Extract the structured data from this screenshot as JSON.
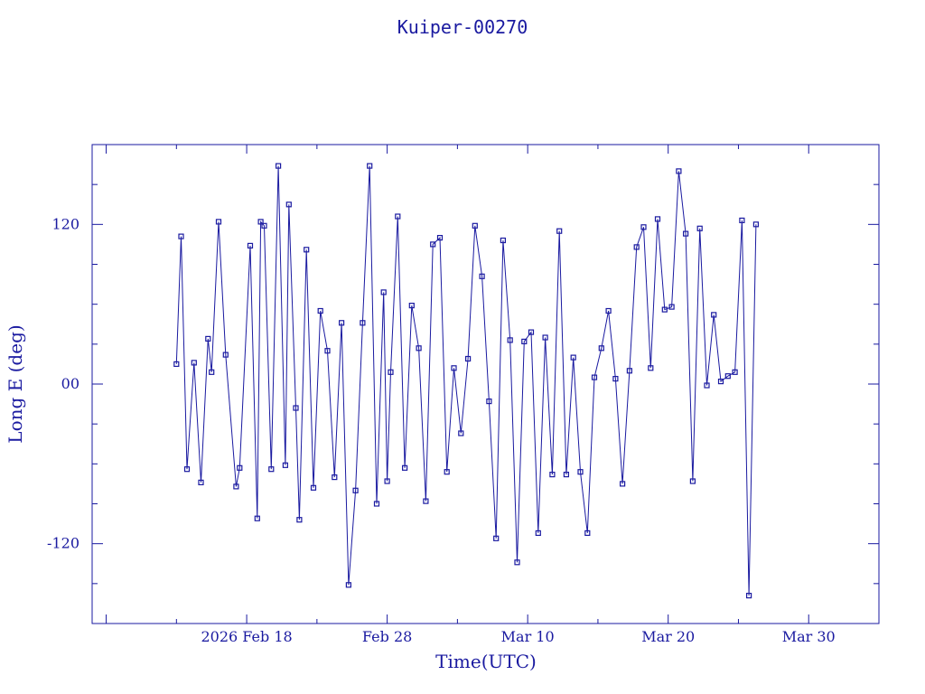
{
  "chart_data": {
    "type": "line",
    "title": "Kuiper-00270",
    "xlabel": "Time(UTC)",
    "ylabel": "Long E (deg)",
    "x_ticks": [
      {
        "date": "2026-02-18",
        "label": "2026 Feb 18"
      },
      {
        "date": "2026-02-28",
        "label": "Feb 28"
      },
      {
        "date": "2026-03-10",
        "label": "Mar 10"
      },
      {
        "date": "2026-03-20",
        "label": "Mar 20"
      },
      {
        "date": "2026-03-30",
        "label": "Mar 30"
      }
    ],
    "y_ticks": [
      {
        "value": 120,
        "label": "120"
      },
      {
        "value": 0,
        "label": "00"
      },
      {
        "value": -120,
        "label": "-120"
      }
    ],
    "xlim": [
      "2026-02-07",
      "2026-04-04"
    ],
    "ylim": [
      -180,
      180
    ],
    "grid": false,
    "series": [
      {
        "marker": "square",
        "color": "#1a1aa0",
        "points": [
          [
            "2026-02-13",
            15
          ],
          [
            "2026-02-13T08:00",
            111
          ],
          [
            "2026-02-13T18:00",
            -64
          ],
          [
            "2026-02-14T06:00",
            16
          ],
          [
            "2026-02-14T18:00",
            -74
          ],
          [
            "2026-02-15T06:00",
            34
          ],
          [
            "2026-02-15T12:00",
            9
          ],
          [
            "2026-02-16",
            122
          ],
          [
            "2026-02-16T12:00",
            22
          ],
          [
            "2026-02-17T06:00",
            -77
          ],
          [
            "2026-02-17T12:00",
            -63
          ],
          [
            "2026-02-18T06:00",
            104
          ],
          [
            "2026-02-18T18:00",
            -101
          ],
          [
            "2026-02-19",
            122
          ],
          [
            "2026-02-19T06:00",
            119
          ],
          [
            "2026-02-19T18:00",
            -64
          ],
          [
            "2026-02-20T06:00",
            164
          ],
          [
            "2026-02-20T18:00",
            -61
          ],
          [
            "2026-02-21",
            135
          ],
          [
            "2026-02-21T12:00",
            -18
          ],
          [
            "2026-02-21T18:00",
            -102
          ],
          [
            "2026-02-22T06:00",
            101
          ],
          [
            "2026-02-22T18:00",
            -78
          ],
          [
            "2026-02-23T06:00",
            55
          ],
          [
            "2026-02-23T18:00",
            25
          ],
          [
            "2026-02-24T06:00",
            -70
          ],
          [
            "2026-02-24T18:00",
            46
          ],
          [
            "2026-02-25T06:00",
            -151
          ],
          [
            "2026-02-25T18:00",
            -80
          ],
          [
            "2026-02-26T06:00",
            46
          ],
          [
            "2026-02-26T18:00",
            164
          ],
          [
            "2026-02-27T06:00",
            -90
          ],
          [
            "2026-02-27T18:00",
            69
          ],
          [
            "2026-02-28",
            -73
          ],
          [
            "2026-02-28T06:00",
            9
          ],
          [
            "2026-02-28T18:00",
            126
          ],
          [
            "2026-03-01T06:00",
            -63
          ],
          [
            "2026-03-01T18:00",
            59
          ],
          [
            "2026-03-02T06:00",
            27
          ],
          [
            "2026-03-02T18:00",
            -88
          ],
          [
            "2026-03-03T06:00",
            105
          ],
          [
            "2026-03-03T18:00",
            110
          ],
          [
            "2026-03-04T06:00",
            -66
          ],
          [
            "2026-03-04T18:00",
            12
          ],
          [
            "2026-03-05T06:00",
            -37
          ],
          [
            "2026-03-05T18:00",
            19
          ],
          [
            "2026-03-06T06:00",
            119
          ],
          [
            "2026-03-06T18:00",
            81
          ],
          [
            "2026-03-07T06:00",
            -13
          ],
          [
            "2026-03-07T18:00",
            -116
          ],
          [
            "2026-03-08T06:00",
            108
          ],
          [
            "2026-03-08T18:00",
            33
          ],
          [
            "2026-03-09T06:00",
            -134
          ],
          [
            "2026-03-09T18:00",
            32
          ],
          [
            "2026-03-10T06:00",
            39
          ],
          [
            "2026-03-10T18:00",
            -112
          ],
          [
            "2026-03-11T06:00",
            35
          ],
          [
            "2026-03-11T18:00",
            -68
          ],
          [
            "2026-03-12T06:00",
            115
          ],
          [
            "2026-03-12T18:00",
            -68
          ],
          [
            "2026-03-13T06:00",
            20
          ],
          [
            "2026-03-13T18:00",
            -66
          ],
          [
            "2026-03-14T06:00",
            -112
          ],
          [
            "2026-03-14T18:00",
            5
          ],
          [
            "2026-03-15T06:00",
            27
          ],
          [
            "2026-03-15T18:00",
            55
          ],
          [
            "2026-03-16T06:00",
            4
          ],
          [
            "2026-03-16T18:00",
            -75
          ],
          [
            "2026-03-17T06:00",
            10
          ],
          [
            "2026-03-17T18:00",
            103
          ],
          [
            "2026-03-18T06:00",
            118
          ],
          [
            "2026-03-18T18:00",
            12
          ],
          [
            "2026-03-19T06:00",
            124
          ],
          [
            "2026-03-19T18:00",
            56
          ],
          [
            "2026-03-20T06:00",
            58
          ],
          [
            "2026-03-20T18:00",
            160
          ],
          [
            "2026-03-21T06:00",
            113
          ],
          [
            "2026-03-21T18:00",
            -73
          ],
          [
            "2026-03-22T06:00",
            117
          ],
          [
            "2026-03-22T18:00",
            -1
          ],
          [
            "2026-03-23T06:00",
            52
          ],
          [
            "2026-03-23T18:00",
            2
          ],
          [
            "2026-03-24T06:00",
            6
          ],
          [
            "2026-03-24T18:00",
            9
          ],
          [
            "2026-03-25T06:00",
            123
          ],
          [
            "2026-03-25T18:00",
            -159
          ],
          [
            "2026-03-26T06:00",
            120
          ]
        ]
      }
    ]
  }
}
